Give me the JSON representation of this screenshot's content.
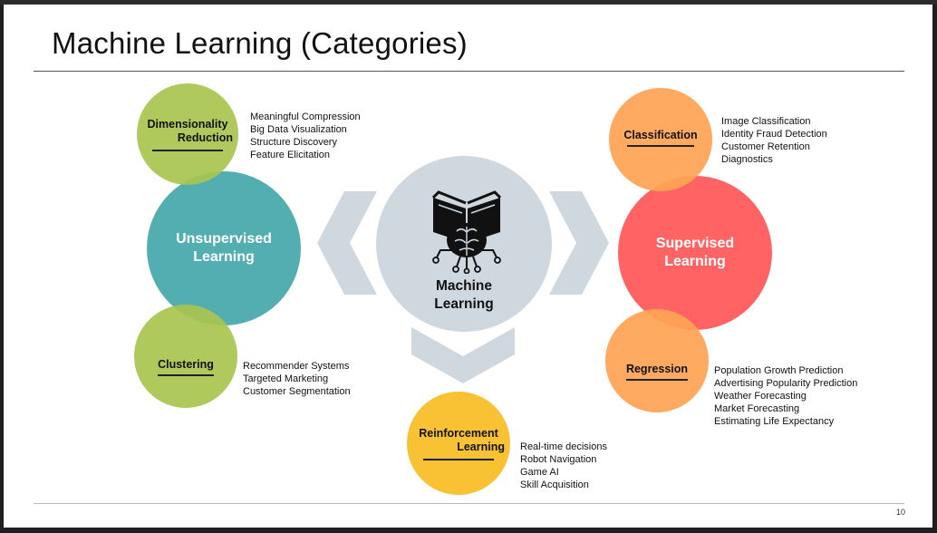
{
  "title": "Machine Learning (Categories)",
  "page_number": "10",
  "center": {
    "label_line1": "Machine",
    "label_line2": "Learning",
    "icon": "brain-book-icon"
  },
  "unsupervised": {
    "label_line1": "Unsupervised",
    "label_line2": "Learning",
    "color": "#44a7aa",
    "dimensionality_reduction": {
      "label_line1": "Dimensionality",
      "label_line2": "Reduction",
      "color": "#a8c44f",
      "uses": [
        "Meaningful Compression",
        "Big Data Visualization",
        "Structure Discovery",
        "Feature Elicitation"
      ]
    },
    "clustering": {
      "label": "Clustering",
      "color": "#a8c44f",
      "uses": [
        "Recommender Systems",
        "Targeted Marketing",
        "Customer Segmentation"
      ]
    }
  },
  "supervised": {
    "label_line1": "Supervised",
    "label_line2": "Learning",
    "color": "#ff5656",
    "classification": {
      "label": "Classification",
      "color": "#ffa454",
      "uses": [
        "Image Classification",
        "Identity Fraud Detection",
        "Customer Retention",
        "Diagnostics"
      ]
    },
    "regression": {
      "label": "Regression",
      "color": "#ffa454",
      "uses": [
        "Population Growth Prediction",
        "Advertising Popularity Prediction",
        "Weather Forecasting",
        "Market Forecasting",
        "Estimating Life Expectancy"
      ]
    }
  },
  "reinforcement": {
    "label_line1": "Reinforcement",
    "label_line2": "Learning",
    "color": "#f9c234",
    "uses": [
      "Real-time decisions",
      "Robot Navigation",
      "Game AI",
      "Skill Acquisition"
    ]
  }
}
